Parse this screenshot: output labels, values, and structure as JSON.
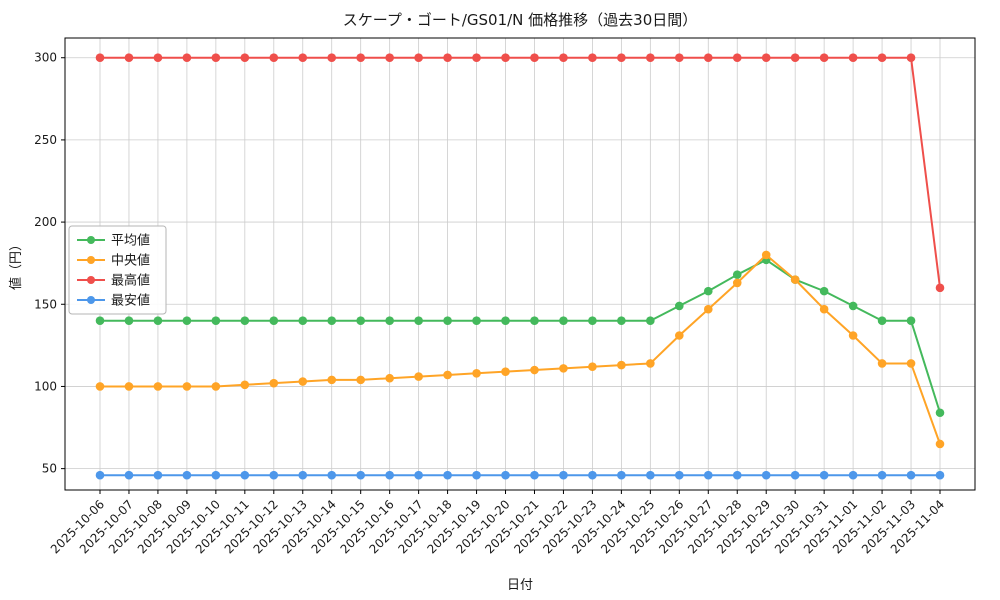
{
  "chart_data": {
    "type": "line",
    "title": "スケープ・ゴート/GS01/N 価格推移（過去30日間）",
    "xlabel": "日付",
    "ylabel": "値（円）",
    "ylim": [
      37,
      312
    ],
    "yticks": [
      50,
      100,
      150,
      200,
      250,
      300
    ],
    "grid": true,
    "legend_position": "center left",
    "categories": [
      "2025-10-06",
      "2025-10-07",
      "2025-10-08",
      "2025-10-09",
      "2025-10-10",
      "2025-10-11",
      "2025-10-12",
      "2025-10-13",
      "2025-10-14",
      "2025-10-15",
      "2025-10-16",
      "2025-10-17",
      "2025-10-18",
      "2025-10-19",
      "2025-10-20",
      "2025-10-21",
      "2025-10-22",
      "2025-10-23",
      "2025-10-24",
      "2025-10-25",
      "2025-10-26",
      "2025-10-27",
      "2025-10-28",
      "2025-10-29",
      "2025-10-30",
      "2025-10-31",
      "2025-11-01",
      "2025-11-02",
      "2025-11-03",
      "2025-11-04"
    ],
    "series": [
      {
        "key": "avg",
        "name": "平均値",
        "color": "#44b95c",
        "values": [
          140,
          140,
          140,
          140,
          140,
          140,
          140,
          140,
          140,
          140,
          140,
          140,
          140,
          140,
          140,
          140,
          140,
          140,
          140,
          140,
          149,
          158,
          168,
          177,
          165,
          158,
          149,
          140,
          140,
          84
        ]
      },
      {
        "key": "median",
        "name": "中央値",
        "color": "#ffa426",
        "values": [
          100,
          100,
          100,
          100,
          100,
          101,
          102,
          103,
          104,
          104,
          105,
          106,
          107,
          108,
          109,
          110,
          111,
          112,
          113,
          114,
          131,
          147,
          163,
          180,
          165,
          147,
          131,
          114,
          114,
          65
        ]
      },
      {
        "key": "max",
        "name": "最高値",
        "color": "#ef4f4b",
        "values": [
          300,
          300,
          300,
          300,
          300,
          300,
          300,
          300,
          300,
          300,
          300,
          300,
          300,
          300,
          300,
          300,
          300,
          300,
          300,
          300,
          300,
          300,
          300,
          300,
          300,
          300,
          300,
          300,
          300,
          160
        ]
      },
      {
        "key": "min",
        "name": "最安値",
        "color": "#4d97ea",
        "values": [
          46,
          46,
          46,
          46,
          46,
          46,
          46,
          46,
          46,
          46,
          46,
          46,
          46,
          46,
          46,
          46,
          46,
          46,
          46,
          46,
          46,
          46,
          46,
          46,
          46,
          46,
          46,
          46,
          46,
          46
        ]
      }
    ]
  }
}
